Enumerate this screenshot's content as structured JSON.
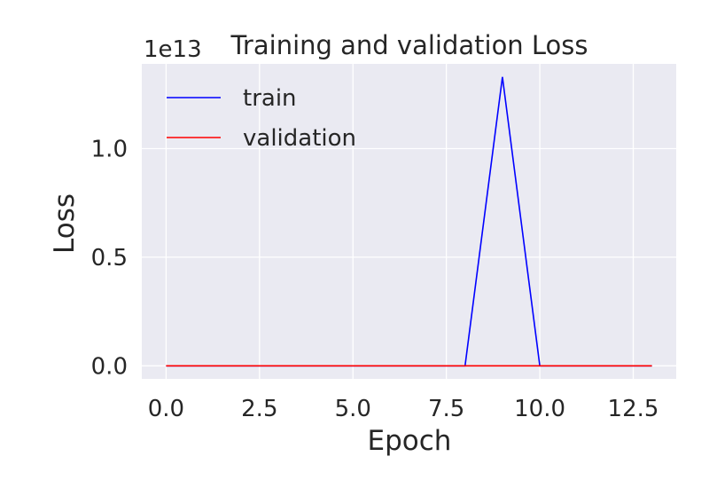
{
  "chart_data": {
    "type": "line",
    "title": "Training and validation  Loss",
    "xlabel": "Epoch",
    "ylabel": "Loss",
    "y_offset_label": "1e13",
    "x_ticks": [
      "0.0",
      "2.5",
      "5.0",
      "7.5",
      "10.0",
      "12.5"
    ],
    "y_ticks": [
      "0.0",
      "0.5",
      "1.0"
    ],
    "xlim": [
      -0.65,
      13.65
    ],
    "ylim": [
      -0.06,
      1.39
    ],
    "grid": true,
    "legend_position": "top-left",
    "series": [
      {
        "name": "train",
        "color": "#0000ff",
        "x": [
          0,
          1,
          2,
          3,
          4,
          5,
          6,
          7,
          8,
          9,
          10,
          11,
          12,
          13
        ],
        "y": [
          0,
          0,
          0,
          0,
          0,
          0,
          0,
          0,
          0,
          1.33,
          0,
          0,
          0,
          0
        ]
      },
      {
        "name": "validation",
        "color": "#ff0000",
        "x": [
          0,
          1,
          2,
          3,
          4,
          5,
          6,
          7,
          8,
          9,
          10,
          11,
          12,
          13
        ],
        "y": [
          0,
          0,
          0,
          0,
          0,
          0,
          0,
          0,
          0,
          0,
          0,
          0,
          0,
          0
        ]
      }
    ]
  }
}
